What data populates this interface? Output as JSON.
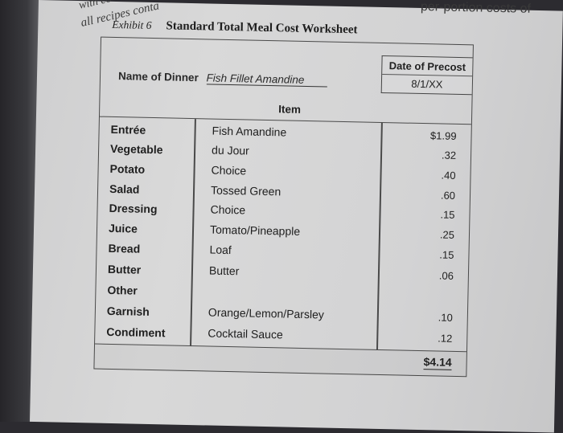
{
  "page_fragments": {
    "top_left_1": "with co",
    "top_left_2": "all recipes conta",
    "top_right": "per-portion costs of"
  },
  "exhibit": {
    "label": "Exhibit 6",
    "title": "Standard Total Meal Cost Worksheet"
  },
  "name_of_dinner": {
    "label": "Name of Dinner",
    "value": "Fish Fillet Amandine"
  },
  "date_of_precost": {
    "label": "Date of Precost",
    "value": "8/1/XX"
  },
  "table": {
    "item_header": "Item",
    "rows": [
      {
        "category": "Entrée",
        "item": "Fish Amandine",
        "cost": "$1.99"
      },
      {
        "category": "Vegetable",
        "item": "du Jour",
        "cost": ".32"
      },
      {
        "category": "Potato",
        "item": "Choice",
        "cost": ".40"
      },
      {
        "category": "Salad",
        "item": "Tossed Green",
        "cost": ".60"
      },
      {
        "category": "Dressing",
        "item": "Choice",
        "cost": ".15"
      },
      {
        "category": "Juice",
        "item": "Tomato/Pineapple",
        "cost": ".25"
      },
      {
        "category": "Bread",
        "item": "Loaf",
        "cost": ".15"
      },
      {
        "category": "Butter",
        "item": "Butter",
        "cost": ".06"
      },
      {
        "category": "Other",
        "item": "",
        "cost": ""
      },
      {
        "category": "Garnish",
        "item": "Orange/Lemon/Parsley",
        "cost": ".10"
      },
      {
        "category": "Condiment",
        "item": "Cocktail Sauce",
        "cost": ".12"
      }
    ],
    "total": "$4.14"
  }
}
